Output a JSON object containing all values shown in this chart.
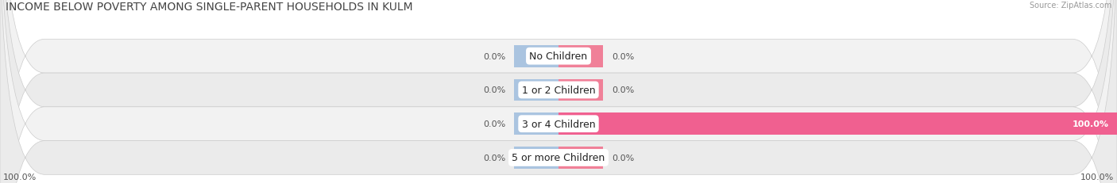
{
  "title": "INCOME BELOW POVERTY AMONG SINGLE-PARENT HOUSEHOLDS IN KULM",
  "source": "Source: ZipAtlas.com",
  "categories": [
    "No Children",
    "1 or 2 Children",
    "3 or 4 Children",
    "5 or more Children"
  ],
  "single_father": [
    0.0,
    0.0,
    0.0,
    0.0
  ],
  "single_mother": [
    0.0,
    0.0,
    100.0,
    0.0
  ],
  "father_color": "#aac4e0",
  "mother_color": "#f08098",
  "mother_color_full": "#f06090",
  "bar_bg_left": "#e8eef4",
  "bar_bg_right": "#fce8ef",
  "row_colors": [
    "#f2f2f2",
    "#ebebeb",
    "#f2f2f2",
    "#ebebeb"
  ],
  "axis_half": 100,
  "title_fontsize": 10,
  "label_fontsize": 8,
  "cat_fontsize": 9,
  "bar_height": 0.65,
  "figsize": [
    14.06,
    2.32
  ],
  "min_bar_visual": 8
}
